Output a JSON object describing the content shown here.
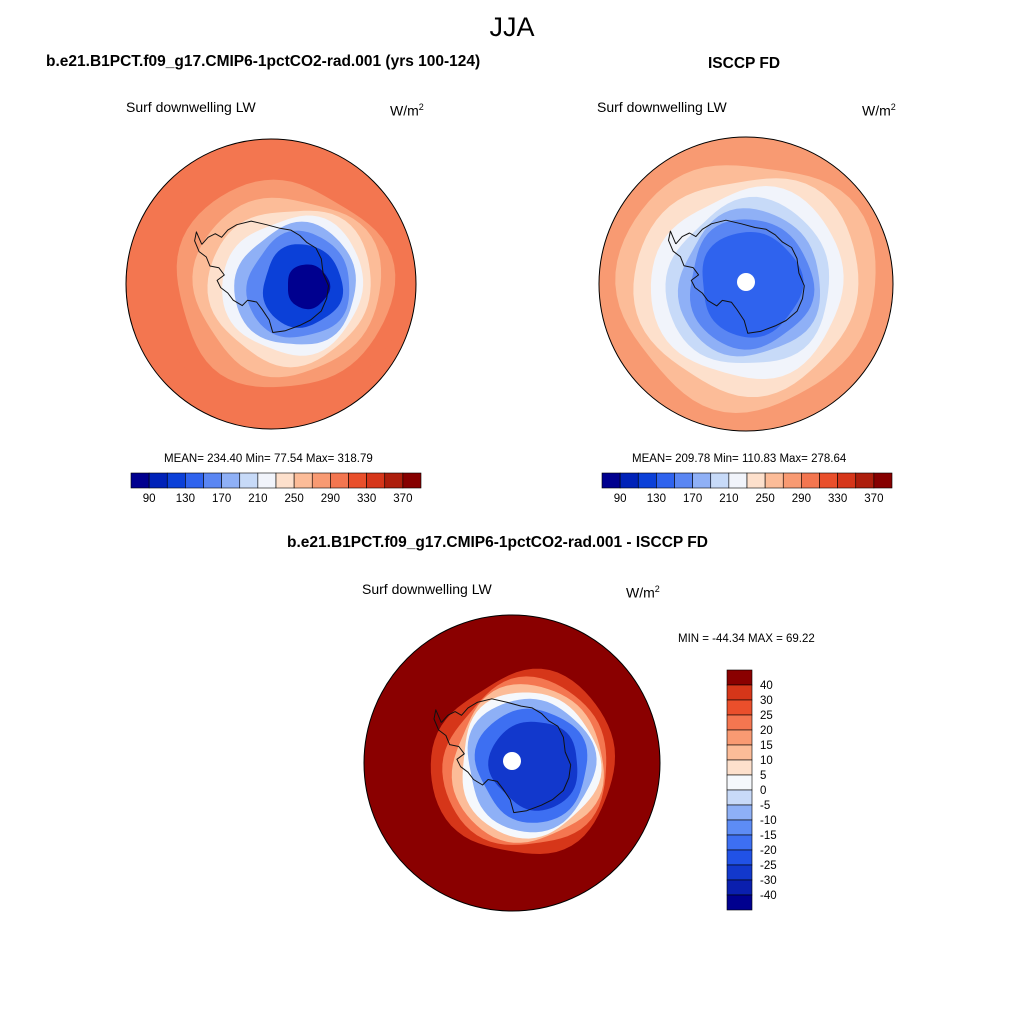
{
  "figure": {
    "season": "JJA"
  },
  "panels": [
    {
      "title": "b.e21.B1PCT.f09_g17.CMIP6-1pctCO2-rad.001 (yrs 100-124)",
      "variable": "Surf downwelling LW",
      "units_base": "W/m",
      "units_exp": "2",
      "stats": "MEAN= 234.40  Min=  77.54  Max= 318.79"
    },
    {
      "title": "ISCCP FD",
      "variable": "Surf downwelling LW",
      "units_base": "W/m",
      "units_exp": "2",
      "stats": "MEAN= 209.78  Min= 110.83  Max= 278.64"
    },
    {
      "title": "b.e21.B1PCT.f09_g17.CMIP6-1pctCO2-rad.001 - ISCCP FD",
      "variable": "Surf downwelling LW",
      "units_base": "W/m",
      "units_exp": "2",
      "stats": "MIN = -44.34 MAX =  69.22"
    }
  ],
  "chart_data": [
    {
      "type": "heatmap",
      "projection": "south-polar-stereographic",
      "title": "b.e21.B1PCT.f09_g17.CMIP6-1pctCO2-rad.001 (yrs 100-124)",
      "variable": "Surf downwelling LW",
      "units": "W/m2",
      "mean": 234.4,
      "min": 77.54,
      "max": 318.79,
      "colorbar_levels": [
        70,
        90,
        110,
        130,
        150,
        170,
        190,
        210,
        230,
        250,
        270,
        290,
        310,
        330,
        350,
        370,
        390
      ],
      "colorbar_tick_labels": [
        "90",
        "130",
        "170",
        "210",
        "250",
        "290",
        "330",
        "370"
      ],
      "colors": [
        "#00008f",
        "#0022b8",
        "#0b40d8",
        "#2f63ee",
        "#5a86f3",
        "#8fb0f6",
        "#c7daf8",
        "#f1f4fb",
        "#fde0cc",
        "#fcbc98",
        "#f89a72",
        "#f37650",
        "#e94f2b",
        "#d6361a",
        "#ad1e0c",
        "#860000"
      ],
      "rings": [
        {
          "value": 300,
          "radius_frac": 1.0
        },
        {
          "value": 290,
          "radius_frac": 0.84
        },
        {
          "value": 270,
          "radius_frac": 0.73
        },
        {
          "value": 250,
          "radius_frac": 0.63
        },
        {
          "value": 230,
          "radius_frac": 0.55
        },
        {
          "value": 210,
          "radius_frac": 0.48
        },
        {
          "value": 180,
          "radius_frac": 0.42
        },
        {
          "value": 150,
          "radius_frac": 0.36
        },
        {
          "value": 120,
          "radius_frac": 0.28
        },
        {
          "value": 85,
          "radius_frac": 0.15
        }
      ]
    },
    {
      "type": "heatmap",
      "projection": "south-polar-stereographic",
      "title": "ISCCP FD",
      "variable": "Surf downwelling LW",
      "units": "W/m2",
      "mean": 209.78,
      "min": 110.83,
      "max": 278.64,
      "colorbar_levels": [
        70,
        90,
        110,
        130,
        150,
        170,
        190,
        210,
        230,
        250,
        270,
        290,
        310,
        330,
        350,
        370,
        390
      ],
      "colorbar_tick_labels": [
        "90",
        "130",
        "170",
        "210",
        "250",
        "290",
        "330",
        "370"
      ],
      "colors": [
        "#00008f",
        "#0022b8",
        "#0b40d8",
        "#2f63ee",
        "#5a86f3",
        "#8fb0f6",
        "#c7daf8",
        "#f1f4fb",
        "#fde0cc",
        "#fcbc98",
        "#f89a72",
        "#f37650",
        "#e94f2b",
        "#d6361a",
        "#ad1e0c",
        "#860000"
      ],
      "rings": [
        {
          "value": 270,
          "radius_frac": 1.0
        },
        {
          "value": 255,
          "radius_frac": 0.86
        },
        {
          "value": 240,
          "radius_frac": 0.75
        },
        {
          "value": 220,
          "radius_frac": 0.65
        },
        {
          "value": 200,
          "radius_frac": 0.56
        },
        {
          "value": 175,
          "radius_frac": 0.49
        },
        {
          "value": 150,
          "radius_frac": 0.43
        },
        {
          "value": 135,
          "radius_frac": 0.35
        }
      ]
    },
    {
      "type": "heatmap",
      "projection": "south-polar-stereographic",
      "title": "b.e21.B1PCT.f09_g17.CMIP6-1pctCO2-rad.001 - ISCCP FD",
      "variable": "Surf downwelling LW",
      "units": "W/m2",
      "min": -44.34,
      "max": 69.22,
      "colorbar_levels": [
        -50,
        -40,
        -30,
        -25,
        -20,
        -15,
        -10,
        -5,
        0,
        5,
        10,
        15,
        20,
        25,
        30,
        40,
        50
      ],
      "colorbar_tick_labels": [
        "40",
        "30",
        "25",
        "20",
        "15",
        "10",
        "5",
        "0",
        "-5",
        "-10",
        "-15",
        "-20",
        "-25",
        "-30",
        "-40"
      ],
      "colors": [
        "#00008f",
        "#0a1fae",
        "#1238cc",
        "#2152e6",
        "#3d6ff2",
        "#5d8cf5",
        "#8eb0f6",
        "#c8daf8",
        "#f5f8fc",
        "#fde0cc",
        "#fcbc98",
        "#f99a72",
        "#f47650",
        "#ea4f2b",
        "#d63619",
        "#8a0000"
      ],
      "rings": [
        {
          "value": 45,
          "radius_frac": 1.0
        },
        {
          "value": 35,
          "radius_frac": 0.62
        },
        {
          "value": 22,
          "radius_frac": 0.56
        },
        {
          "value": 12,
          "radius_frac": 0.52
        },
        {
          "value": 2,
          "radius_frac": 0.48
        },
        {
          "value": -10,
          "radius_frac": 0.44
        },
        {
          "value": -20,
          "radius_frac": 0.38
        },
        {
          "value": -30,
          "radius_frac": 0.3
        }
      ]
    }
  ]
}
